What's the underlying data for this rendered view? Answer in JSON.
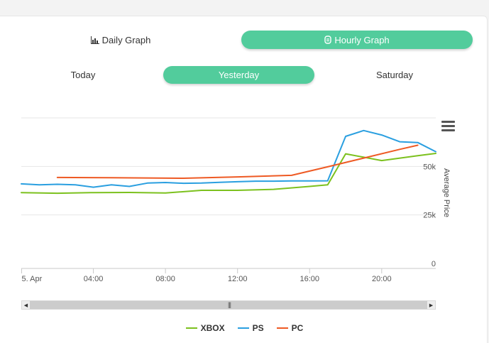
{
  "graph_toggle": {
    "daily_label": "Daily Graph",
    "hourly_label": "Hourly Graph",
    "active": "hourly"
  },
  "day_tabs": {
    "items": [
      "Today",
      "Yesterday",
      "Saturday"
    ],
    "active_index": 1
  },
  "colors": {
    "accent": "#52cc9c",
    "xbox": "#7cc11e",
    "ps": "#2a9fe0",
    "pc": "#ee5a24"
  },
  "chart_data": {
    "type": "line",
    "x_tick_labels": [
      "5. Apr",
      "04:00",
      "08:00",
      "12:00",
      "16:00",
      "20:00"
    ],
    "x_tick_hours": [
      0,
      4,
      8,
      12,
      16,
      20
    ],
    "xlim": [
      0,
      23
    ],
    "y_tick_labels": [
      "0",
      "25k",
      "50k"
    ],
    "y_tick_values": [
      0,
      25000,
      50000
    ],
    "ylim": [
      0,
      75000
    ],
    "ylabel": "Average Price",
    "y_axis_side": "right",
    "grid": true,
    "legend_position": "bottom-center",
    "series": [
      {
        "name": "XBOX",
        "color": "#7cc11e",
        "points": [
          [
            0,
            36500
          ],
          [
            2,
            36200
          ],
          [
            4,
            36500
          ],
          [
            6,
            36600
          ],
          [
            8,
            36300
          ],
          [
            10,
            37700
          ],
          [
            12,
            37700
          ],
          [
            14,
            38200
          ],
          [
            16,
            39700
          ],
          [
            17,
            40500
          ],
          [
            18,
            56500
          ],
          [
            20,
            53000
          ],
          [
            22,
            55500
          ],
          [
            23,
            56700
          ]
        ]
      },
      {
        "name": "PS",
        "color": "#2a9fe0",
        "points": [
          [
            0,
            41000
          ],
          [
            1,
            40500
          ],
          [
            2,
            40800
          ],
          [
            3,
            40500
          ],
          [
            4,
            39300
          ],
          [
            5,
            40500
          ],
          [
            6,
            39700
          ],
          [
            7,
            41400
          ],
          [
            8,
            41700
          ],
          [
            9,
            41300
          ],
          [
            10,
            41400
          ],
          [
            11,
            41800
          ],
          [
            12,
            42100
          ],
          [
            13,
            42400
          ],
          [
            14,
            42400
          ],
          [
            15,
            42500
          ],
          [
            16,
            42500
          ],
          [
            17,
            42600
          ],
          [
            18,
            65500
          ],
          [
            19,
            68500
          ],
          [
            20,
            66200
          ],
          [
            21,
            62700
          ],
          [
            22,
            62300
          ],
          [
            23,
            57600
          ]
        ]
      },
      {
        "name": "PC",
        "color": "#ee5a24",
        "points": [
          [
            2,
            44300
          ],
          [
            5,
            44200
          ],
          [
            9,
            43900
          ],
          [
            12,
            44600
          ],
          [
            15,
            45400
          ],
          [
            17,
            49800
          ],
          [
            19,
            54300
          ],
          [
            21,
            58800
          ],
          [
            22,
            60900
          ]
        ]
      }
    ]
  }
}
